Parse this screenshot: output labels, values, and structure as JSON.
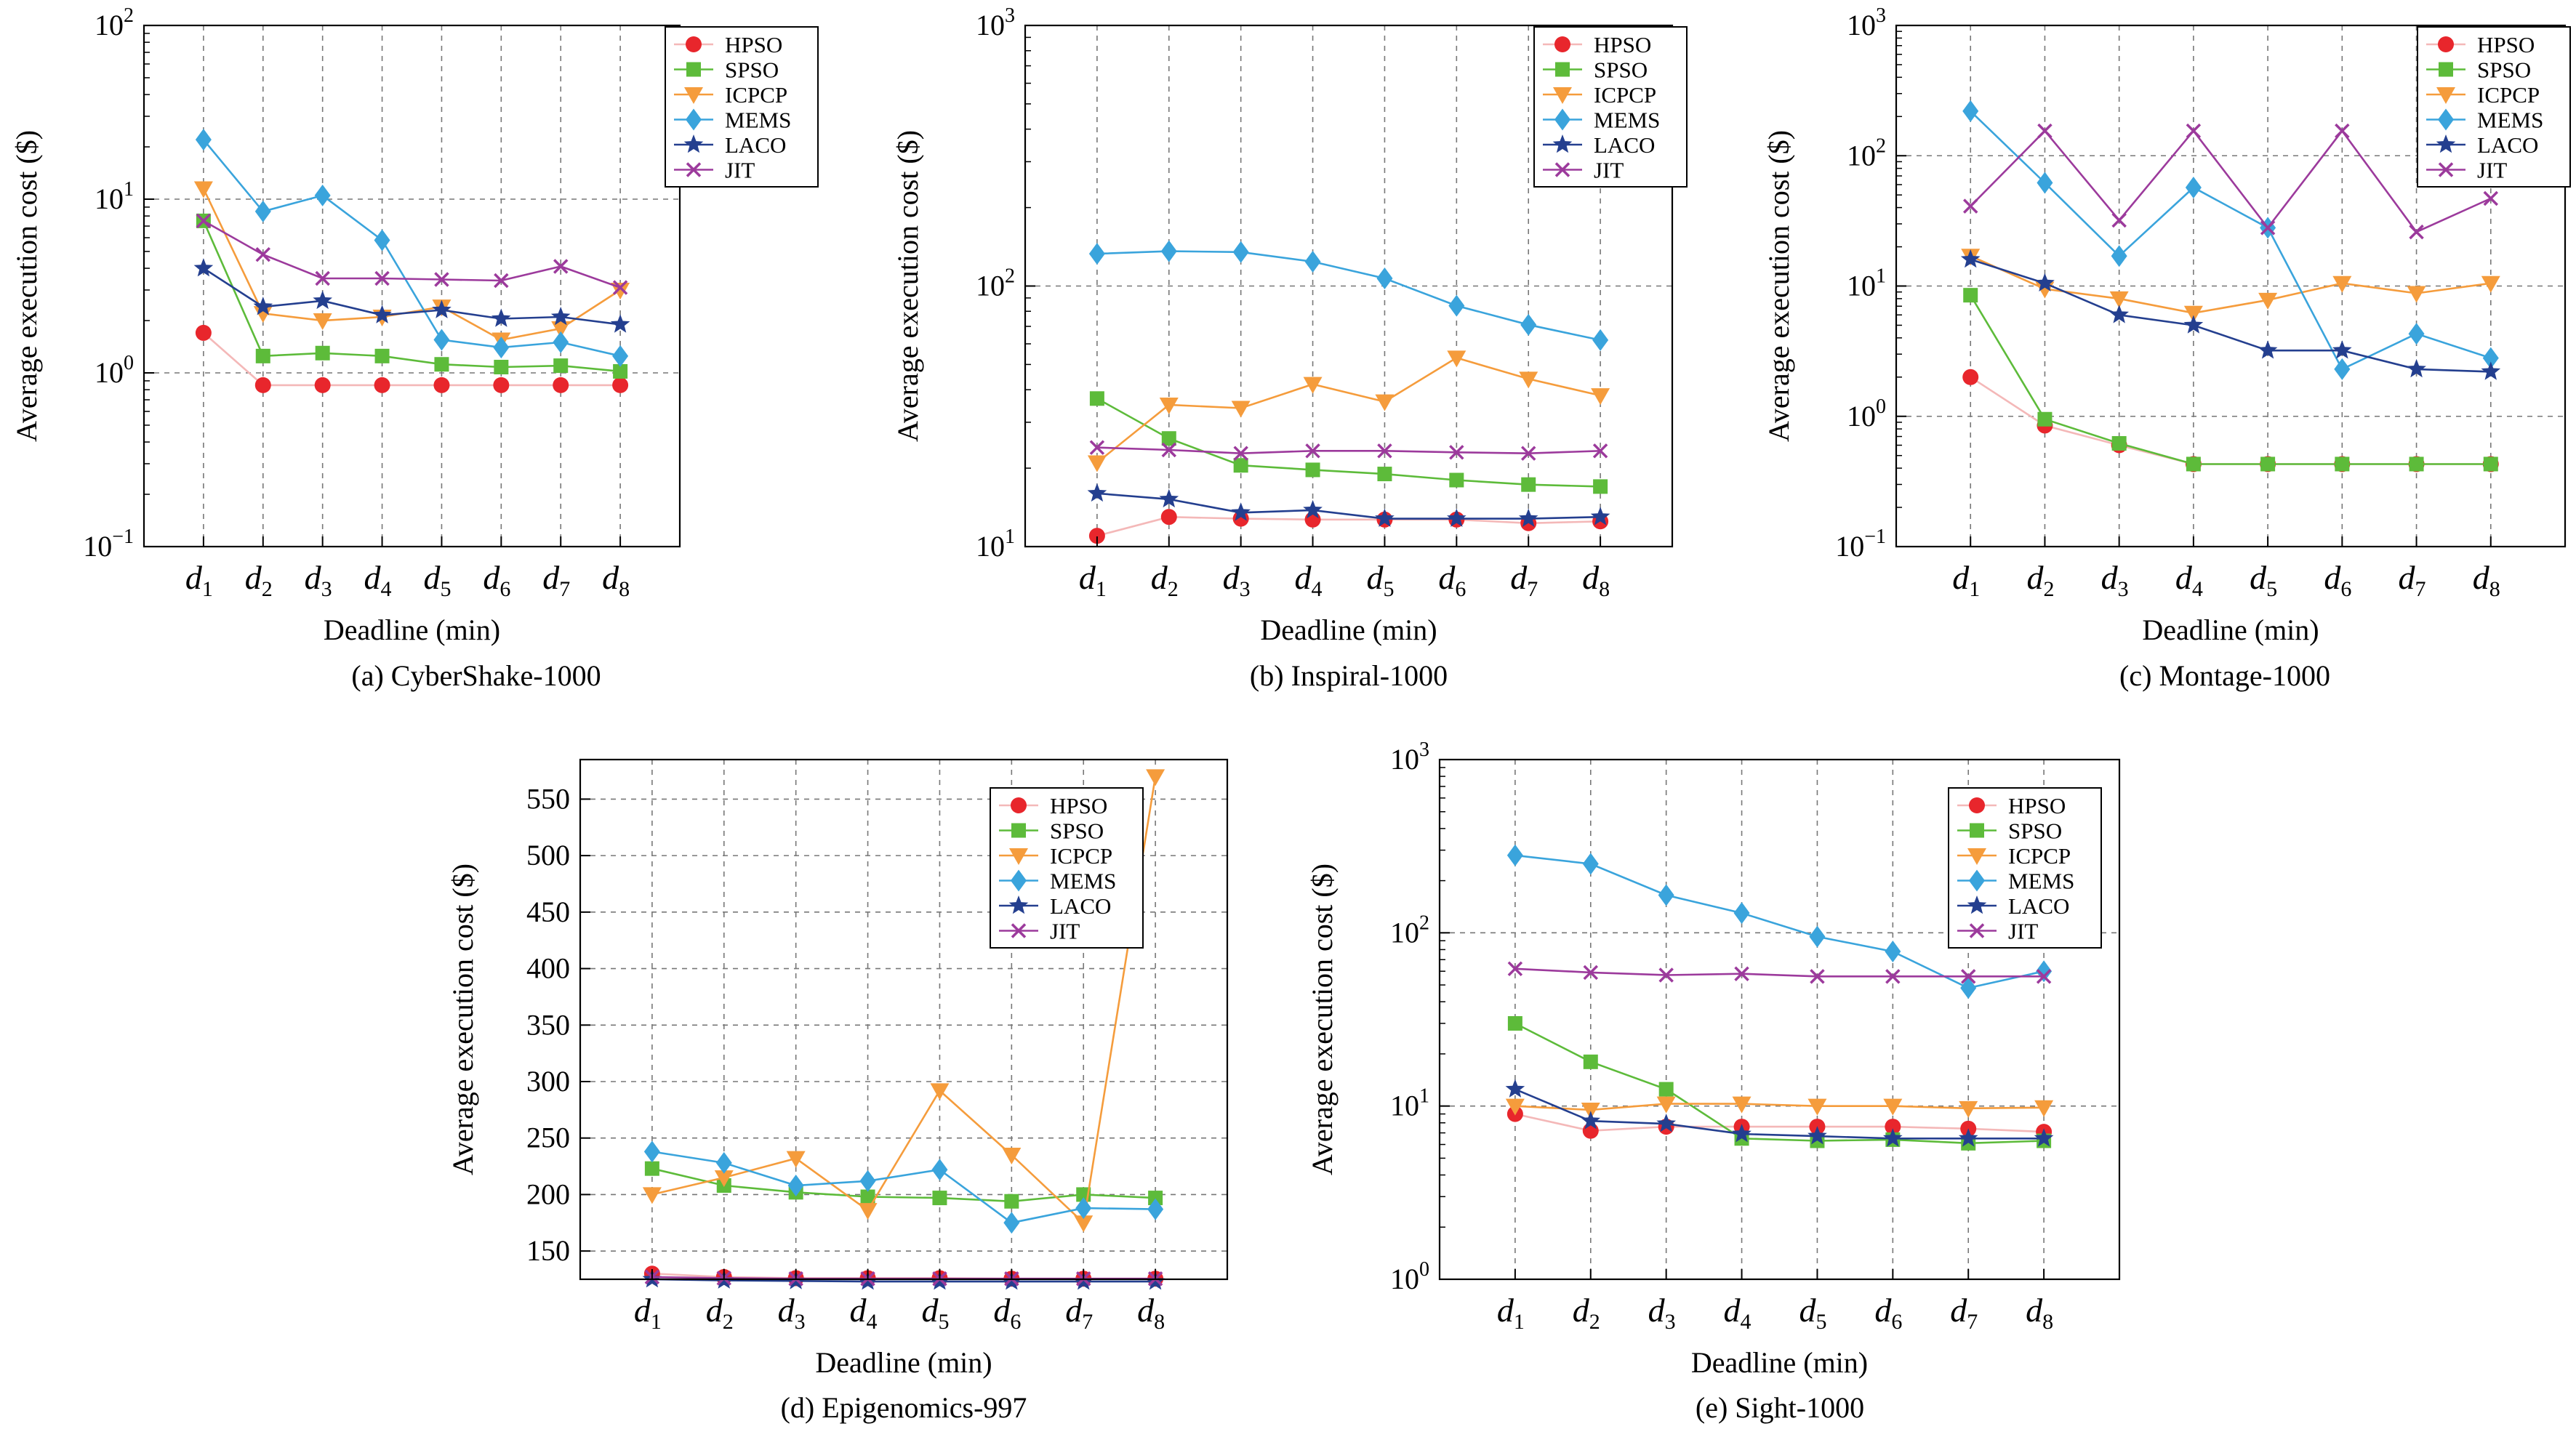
{
  "figure": {
    "xlabel": "Deadline (min)",
    "ylabel": "Average execution cost ($)",
    "x_ticks": [
      "d",
      "d",
      "d",
      "d",
      "d",
      "d",
      "d",
      "d"
    ],
    "x_tick_subscripts": [
      "1",
      "2",
      "3",
      "4",
      "5",
      "6",
      "7",
      "8"
    ]
  },
  "legend": [
    "HPSO",
    "SPSO",
    "ICPCP",
    "MEMS",
    "LACO",
    "JIT"
  ],
  "colors": {
    "HPSO": "#e8262c",
    "SPSO": "#5dbb3a",
    "ICPCP": "#f59c3c",
    "MEMS": "#3aa4dc",
    "LACO": "#243f8f",
    "JIT": "#9c3a9c",
    "HPSO_line": "#f4b8b8"
  },
  "markers": {
    "HPSO": "circle-icon",
    "SPSO": "square-icon",
    "ICPCP": "triangle-down-icon",
    "MEMS": "diamond-icon",
    "LACO": "star-icon",
    "JIT": "cross-icon"
  },
  "chart_data": [
    {
      "type": "line",
      "caption": "(a) CyberShake-1000",
      "yscale": "log",
      "ylim": [
        0.1,
        100
      ],
      "y_ticks": [
        {
          "value": 0.1,
          "base": "10",
          "exp": "−1"
        },
        {
          "value": 1,
          "base": "10",
          "exp": "0"
        },
        {
          "value": 10,
          "base": "10",
          "exp": "1"
        },
        {
          "value": 100,
          "base": "10",
          "exp": "2"
        }
      ],
      "x": [
        1,
        2,
        3,
        4,
        5,
        6,
        7,
        8
      ],
      "series": [
        {
          "name": "HPSO",
          "values": [
            1.7,
            0.85,
            0.85,
            0.85,
            0.85,
            0.85,
            0.85,
            0.85
          ]
        },
        {
          "name": "SPSO",
          "values": [
            7.5,
            1.25,
            1.3,
            1.25,
            1.12,
            1.08,
            1.1,
            1.02
          ]
        },
        {
          "name": "ICPCP",
          "values": [
            11.5,
            2.2,
            2.0,
            2.1,
            2.4,
            1.55,
            1.8,
            3.0
          ]
        },
        {
          "name": "MEMS",
          "values": [
            22,
            8.5,
            10.5,
            5.8,
            1.55,
            1.4,
            1.5,
            1.25
          ]
        },
        {
          "name": "LACO",
          "values": [
            4.0,
            2.4,
            2.6,
            2.15,
            2.3,
            2.05,
            2.1,
            1.9
          ]
        },
        {
          "name": "JIT",
          "values": [
            7.5,
            4.8,
            3.5,
            3.5,
            3.45,
            3.4,
            4.1,
            3.1
          ]
        }
      ]
    },
    {
      "type": "line",
      "caption": "(b) Inspiral-1000",
      "yscale": "log",
      "ylim": [
        10,
        1000
      ],
      "y_ticks": [
        {
          "value": 10,
          "base": "10",
          "exp": "1"
        },
        {
          "value": 100,
          "base": "10",
          "exp": "2"
        },
        {
          "value": 1000,
          "base": "10",
          "exp": "3"
        }
      ],
      "x": [
        1,
        2,
        3,
        4,
        5,
        6,
        7,
        8
      ],
      "series": [
        {
          "name": "HPSO",
          "values": [
            11,
            13,
            12.8,
            12.7,
            12.7,
            12.7,
            12.3,
            12.5
          ]
        },
        {
          "name": "SPSO",
          "values": [
            37,
            26,
            20.5,
            19.7,
            19,
            18,
            17.3,
            17
          ]
        },
        {
          "name": "ICPCP",
          "values": [
            21,
            35,
            34,
            42,
            36,
            53,
            44,
            38
          ]
        },
        {
          "name": "MEMS",
          "values": [
            133,
            136,
            135,
            124,
            107,
            84,
            71,
            62
          ]
        },
        {
          "name": "LACO",
          "values": [
            16,
            15.2,
            13.5,
            13.8,
            12.8,
            12.8,
            12.8,
            13
          ]
        },
        {
          "name": "JIT",
          "values": [
            24,
            23.5,
            22.8,
            23.3,
            23.3,
            23,
            22.8,
            23.3
          ]
        }
      ]
    },
    {
      "type": "line",
      "caption": "(c) Montage-1000",
      "yscale": "log",
      "ylim": [
        0.1,
        1000
      ],
      "y_ticks": [
        {
          "value": 0.1,
          "base": "10",
          "exp": "−1"
        },
        {
          "value": 1,
          "base": "10",
          "exp": "0"
        },
        {
          "value": 10,
          "base": "10",
          "exp": "1"
        },
        {
          "value": 100,
          "base": "10",
          "exp": "2"
        },
        {
          "value": 1000,
          "base": "10",
          "exp": "3"
        }
      ],
      "x": [
        1,
        2,
        3,
        4,
        5,
        6,
        7,
        8
      ],
      "series": [
        {
          "name": "HPSO",
          "values": [
            2.0,
            0.85,
            0.6,
            0.43,
            0.43,
            0.43,
            0.43,
            0.43
          ]
        },
        {
          "name": "SPSO",
          "values": [
            8.5,
            0.95,
            0.62,
            0.43,
            0.43,
            0.43,
            0.43,
            0.43
          ]
        },
        {
          "name": "ICPCP",
          "values": [
            17,
            9.5,
            8,
            6.2,
            7.8,
            10.5,
            8.8,
            10.5
          ]
        },
        {
          "name": "MEMS",
          "values": [
            220,
            62,
            17,
            57,
            28,
            2.3,
            4.3,
            2.8
          ]
        },
        {
          "name": "LACO",
          "values": [
            16,
            10.5,
            6,
            5,
            3.2,
            3.2,
            2.3,
            2.2
          ]
        },
        {
          "name": "JIT",
          "values": [
            41,
            155,
            32,
            155,
            28,
            155,
            26,
            47
          ]
        }
      ]
    },
    {
      "type": "line",
      "caption": "(d) Epigenomics-997",
      "yscale": "linear",
      "ylim": [
        125,
        585
      ],
      "y_ticks": [
        {
          "value": 150,
          "label": "150"
        },
        {
          "value": 200,
          "label": "200"
        },
        {
          "value": 250,
          "label": "250"
        },
        {
          "value": 300,
          "label": "300"
        },
        {
          "value": 350,
          "label": "350"
        },
        {
          "value": 400,
          "label": "400"
        },
        {
          "value": 450,
          "label": "450"
        },
        {
          "value": 500,
          "label": "500"
        },
        {
          "value": 550,
          "label": "550"
        }
      ],
      "x": [
        1,
        2,
        3,
        4,
        5,
        6,
        7,
        8
      ],
      "series": [
        {
          "name": "HPSO",
          "values": [
            130,
            127,
            126,
            126,
            126,
            125.5,
            125.5,
            125.5
          ]
        },
        {
          "name": "SPSO",
          "values": [
            223,
            208,
            202,
            198,
            197,
            194,
            200,
            197
          ]
        },
        {
          "name": "ICPCP",
          "values": [
            200,
            215,
            232,
            186,
            292,
            235,
            175,
            570
          ]
        },
        {
          "name": "MEMS",
          "values": [
            238,
            228,
            208,
            212,
            222,
            175,
            188,
            187
          ]
        },
        {
          "name": "LACO",
          "values": [
            125,
            124,
            123.5,
            123,
            123,
            123,
            123,
            123
          ]
        },
        {
          "name": "JIT",
          "values": [
            127,
            126,
            125.5,
            125.5,
            125.5,
            125.5,
            125.5,
            125.5
          ]
        }
      ]
    },
    {
      "type": "line",
      "caption": "(e) Sight-1000",
      "yscale": "log",
      "ylim": [
        1,
        1000
      ],
      "y_ticks": [
        {
          "value": 1,
          "base": "10",
          "exp": "0"
        },
        {
          "value": 10,
          "base": "10",
          "exp": "1"
        },
        {
          "value": 100,
          "base": "10",
          "exp": "2"
        },
        {
          "value": 1000,
          "base": "10",
          "exp": "3"
        }
      ],
      "x": [
        1,
        2,
        3,
        4,
        5,
        6,
        7,
        8
      ],
      "series": [
        {
          "name": "HPSO",
          "values": [
            9,
            7.2,
            7.6,
            7.6,
            7.6,
            7.6,
            7.4,
            7.1
          ]
        },
        {
          "name": "SPSO",
          "values": [
            30,
            18,
            12.5,
            6.5,
            6.3,
            6.4,
            6.1,
            6.3
          ]
        },
        {
          "name": "ICPCP",
          "values": [
            10,
            9.5,
            10.3,
            10.3,
            10,
            10,
            9.7,
            9.8
          ]
        },
        {
          "name": "MEMS",
          "values": [
            280,
            250,
            165,
            130,
            95,
            78,
            48,
            60
          ]
        },
        {
          "name": "LACO",
          "values": [
            12.5,
            8.2,
            7.9,
            6.9,
            6.7,
            6.5,
            6.5,
            6.5
          ]
        },
        {
          "name": "JIT",
          "values": [
            62,
            59,
            57,
            58,
            56,
            56,
            56,
            56
          ]
        }
      ]
    }
  ]
}
